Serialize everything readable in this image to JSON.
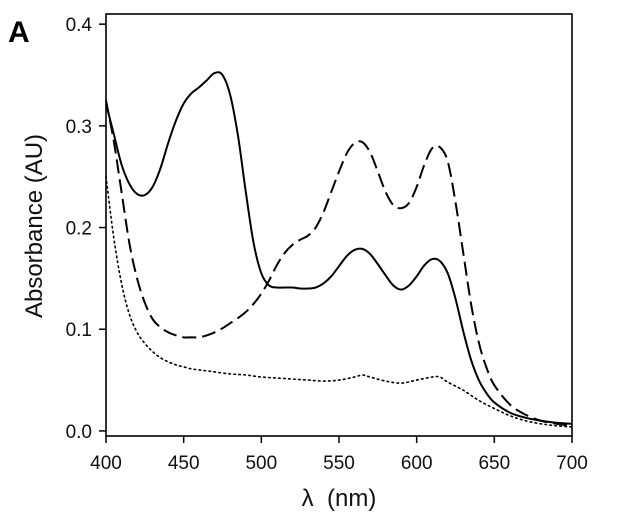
{
  "chart_data": {
    "type": "line",
    "panel_label": "A",
    "title": "",
    "xlabel": "λ  (nm)",
    "ylabel": "Absorbance (AU)",
    "xlim": [
      400,
      700
    ],
    "ylim": [
      -0.005,
      0.41
    ],
    "x_ticks": [
      400,
      450,
      500,
      550,
      600,
      650,
      700
    ],
    "x_tick_labels": [
      "400",
      "450",
      "500",
      "550",
      "600",
      "650",
      "700"
    ],
    "y_ticks": [
      0.0,
      0.1,
      0.2,
      0.3,
      0.4
    ],
    "y_tick_labels": [
      "0.0",
      "0.1",
      "0.2",
      "0.3",
      "0.4"
    ],
    "grid": false,
    "legend": false,
    "series": [
      {
        "name": "solid",
        "line_style": "solid",
        "color": "#000000",
        "x": [
          400,
          405,
          410,
          415,
          420,
          425,
          430,
          435,
          440,
          445,
          450,
          455,
          460,
          465,
          470,
          475,
          480,
          485,
          490,
          495,
          500,
          505,
          510,
          515,
          520,
          525,
          530,
          535,
          540,
          545,
          550,
          555,
          560,
          565,
          570,
          575,
          580,
          585,
          590,
          595,
          600,
          605,
          610,
          615,
          620,
          625,
          630,
          635,
          640,
          645,
          650,
          660,
          670,
          680,
          690,
          700
        ],
        "values": [
          0.322,
          0.292,
          0.262,
          0.243,
          0.233,
          0.232,
          0.24,
          0.258,
          0.283,
          0.305,
          0.322,
          0.332,
          0.338,
          0.345,
          0.352,
          0.35,
          0.33,
          0.29,
          0.235,
          0.185,
          0.155,
          0.143,
          0.141,
          0.141,
          0.141,
          0.14,
          0.14,
          0.141,
          0.145,
          0.152,
          0.162,
          0.172,
          0.178,
          0.179,
          0.174,
          0.164,
          0.153,
          0.143,
          0.139,
          0.143,
          0.152,
          0.163,
          0.169,
          0.167,
          0.155,
          0.13,
          0.098,
          0.07,
          0.05,
          0.037,
          0.028,
          0.018,
          0.013,
          0.01,
          0.008,
          0.007
        ]
      },
      {
        "name": "dashed",
        "line_style": "dashed",
        "color": "#000000",
        "x": [
          400,
          405,
          410,
          415,
          420,
          425,
          430,
          435,
          440,
          445,
          450,
          455,
          460,
          465,
          470,
          475,
          480,
          485,
          490,
          495,
          500,
          505,
          510,
          515,
          520,
          525,
          530,
          535,
          540,
          545,
          550,
          555,
          560,
          565,
          570,
          575,
          580,
          585,
          590,
          595,
          600,
          605,
          610,
          615,
          620,
          625,
          630,
          635,
          640,
          645,
          650,
          660,
          670,
          680,
          690,
          700
        ],
        "values": [
          0.325,
          0.285,
          0.235,
          0.185,
          0.15,
          0.126,
          0.11,
          0.102,
          0.097,
          0.094,
          0.092,
          0.092,
          0.092,
          0.094,
          0.097,
          0.101,
          0.106,
          0.111,
          0.117,
          0.125,
          0.135,
          0.148,
          0.163,
          0.175,
          0.183,
          0.188,
          0.192,
          0.2,
          0.215,
          0.235,
          0.255,
          0.273,
          0.283,
          0.284,
          0.274,
          0.255,
          0.235,
          0.222,
          0.219,
          0.224,
          0.24,
          0.262,
          0.278,
          0.279,
          0.265,
          0.225,
          0.175,
          0.125,
          0.087,
          0.062,
          0.045,
          0.026,
          0.016,
          0.01,
          0.007,
          0.005
        ]
      },
      {
        "name": "dotted",
        "line_style": "dotted",
        "color": "#000000",
        "x": [
          400,
          405,
          410,
          415,
          420,
          425,
          430,
          435,
          440,
          445,
          450,
          455,
          460,
          465,
          470,
          480,
          490,
          500,
          510,
          520,
          530,
          540,
          550,
          560,
          565,
          570,
          580,
          590,
          600,
          610,
          615,
          620,
          630,
          640,
          650,
          660,
          670,
          680,
          690,
          700
        ],
        "values": [
          0.25,
          0.19,
          0.145,
          0.115,
          0.097,
          0.086,
          0.078,
          0.072,
          0.068,
          0.065,
          0.063,
          0.061,
          0.06,
          0.059,
          0.058,
          0.056,
          0.055,
          0.053,
          0.052,
          0.051,
          0.05,
          0.049,
          0.05,
          0.053,
          0.055,
          0.053,
          0.049,
          0.047,
          0.05,
          0.053,
          0.053,
          0.048,
          0.04,
          0.03,
          0.022,
          0.015,
          0.01,
          0.007,
          0.005,
          0.004
        ]
      }
    ]
  }
}
